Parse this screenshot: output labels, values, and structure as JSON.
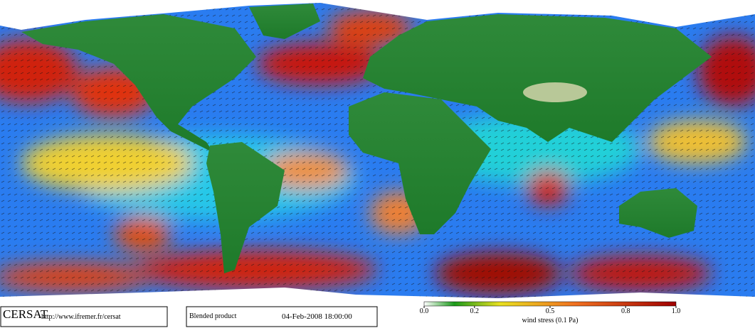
{
  "footer": {
    "logo": "CERSAT",
    "url": "http://www.ifremer.fr/cersat",
    "product": "Blended product",
    "datetime": "04-Feb-2008 18:00:00"
  },
  "colorbar": {
    "label": "wind stress (0.1 Pa)",
    "lim": [
      0,
      1
    ],
    "ticks": [
      {
        "value": 0,
        "label": "0.0"
      },
      0.2,
      0.5,
      0.8,
      {
        "value": 1,
        "label": "1.0"
      }
    ]
  }
}
